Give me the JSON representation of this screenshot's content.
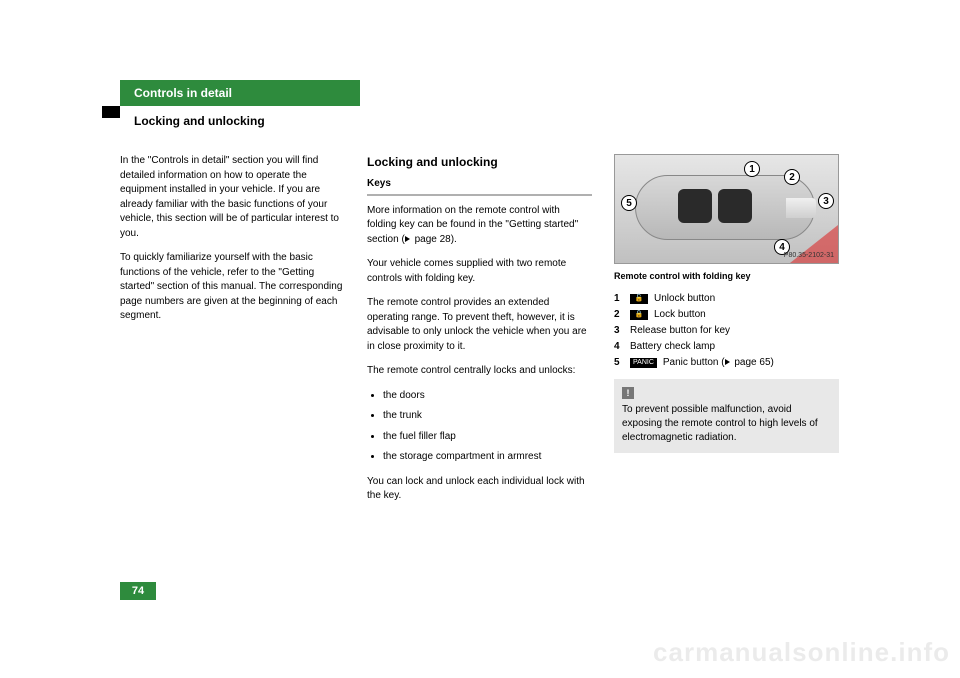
{
  "chapter": "Controls in detail",
  "section": "Locking and unlocking",
  "col1": {
    "p1": "In the \"Controls in detail\" section you will find detailed information on how to oper­ate the equipment installed in your vehicle. If you are already familiar with the basic functions of your vehicle, this section will be of particular interest to you.",
    "p2": "To quickly familiarize yourself with the ba­sic functions of the vehicle, refer to the \"Getting started\" section of this manual. The corresponding page numbers are giv­en at the beginning of each segment."
  },
  "col2": {
    "heading": "Locking and unlocking",
    "sub": "Keys",
    "p1a": "More information on the remote control with folding key can be found in the \"Get­ting started\" section (",
    "p1b": " page 28).",
    "p2": "Your vehicle comes supplied with two re­mote controls with folding key.",
    "p3": "The remote control provides an extended operating range. To prevent theft, howev­er, it is advisable to only unlock the vehicle when you are in close proximity to it.",
    "p4": "The remote control centrally locks and un­locks:",
    "bullets": [
      "the doors",
      "the trunk",
      "the fuel filler flap",
      "the storage compartment in armrest"
    ],
    "p5": "You can lock and unlock each individual lock with the key."
  },
  "col3": {
    "img_code": "P80.35-2102-31",
    "caption": "Remote control with folding key",
    "legend": {
      "l1_num": "1",
      "l1_icon": "🔓",
      "l1_text": "Unlock button",
      "l2_num": "2",
      "l2_icon": "🔒",
      "l2_text": "Lock button",
      "l3_num": "3",
      "l3_text": "Release button for key",
      "l4_num": "4",
      "l4_text": "Battery check lamp",
      "l5_num": "5",
      "l5_icon": "PANIC",
      "l5_text_a": "Panic button (",
      "l5_text_b": " page 65)"
    },
    "note": "To prevent possible malfunction, avoid exposing the remote control to high levels of electromagnetic radiation."
  },
  "markers": {
    "c1": "1",
    "c2": "2",
    "c3": "3",
    "c4": "4",
    "c5": "5"
  },
  "page_number": "74",
  "watermark": "carmanualsonline.info"
}
